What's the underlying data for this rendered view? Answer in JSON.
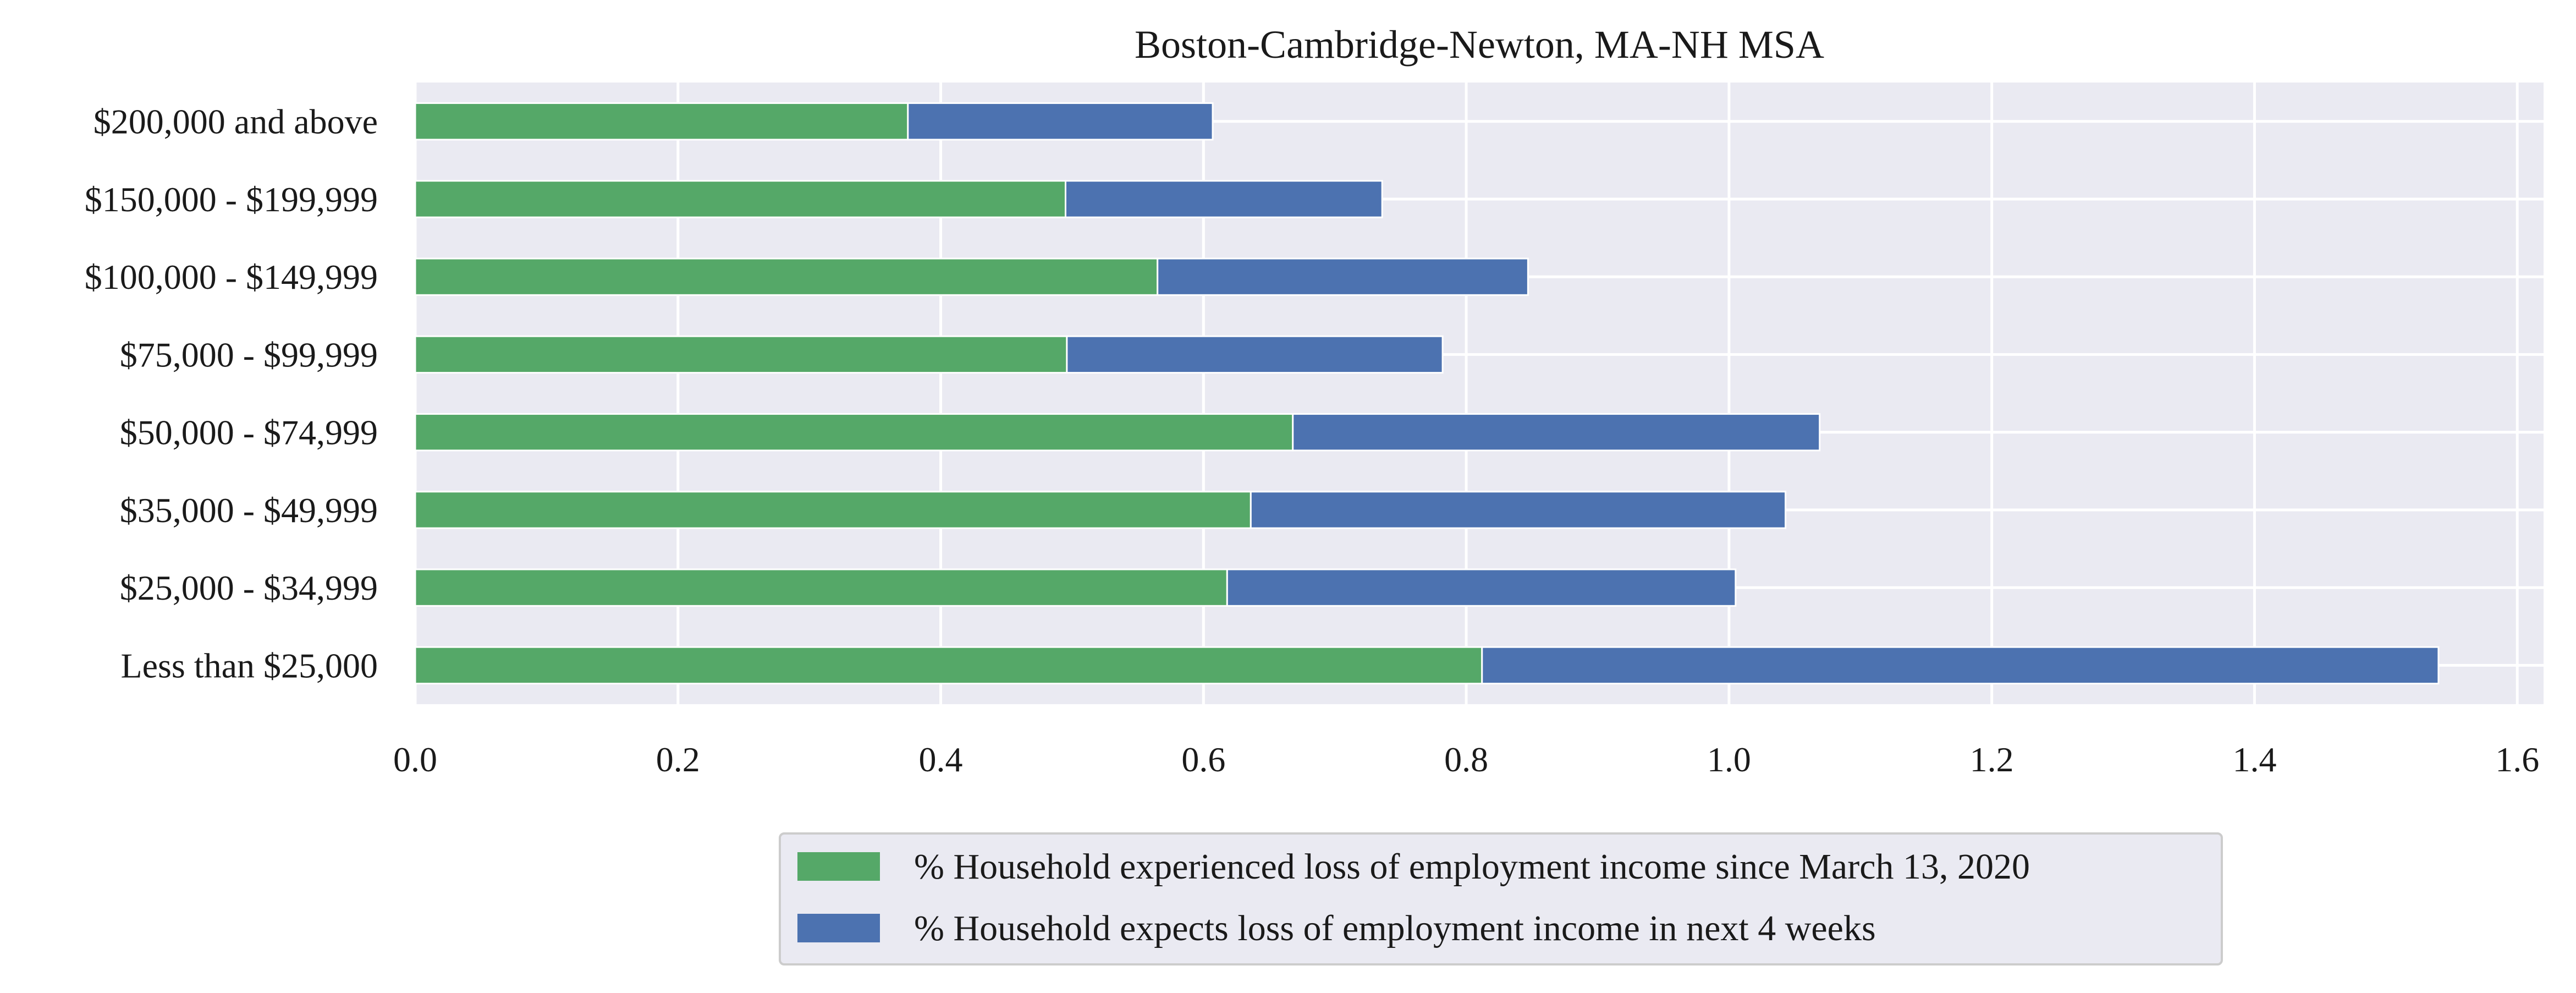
{
  "chart_data": {
    "type": "bar",
    "orientation": "horizontal",
    "stacked": true,
    "title": "Boston-Cambridge-Newton, MA-NH MSA",
    "xlabel": "",
    "ylabel": "",
    "xlim": [
      0,
      1.62
    ],
    "xticks": [
      "0.0",
      "0.2",
      "0.4",
      "0.6",
      "0.8",
      "1.0",
      "1.2",
      "1.4",
      "1.6"
    ],
    "grid": true,
    "legend_position": "bottom-center",
    "categories": [
      "$200,000 and above",
      "$150,000 - $199,999",
      "$100,000 - $149,999",
      "$75,000 - $99,999",
      "$50,000 - $74,999",
      "$35,000 - $49,999",
      "$25,000 - $34,999",
      "Less than $25,000"
    ],
    "series": [
      {
        "name": "% Household experienced loss of employment income since March 13, 2020",
        "color": "#55a868",
        "values": [
          0.375,
          0.495,
          0.565,
          0.496,
          0.668,
          0.636,
          0.618,
          0.812
        ]
      },
      {
        "name": "% Household expects loss of employment income in next 4 weeks",
        "color": "#4c72b0",
        "values": [
          0.232,
          0.241,
          0.282,
          0.286,
          0.401,
          0.407,
          0.387,
          0.728
        ]
      }
    ],
    "colors": {
      "plot_background": "#eaeaf2",
      "grid": "#ffffff",
      "legend_background": "#eaeaf2",
      "legend_border": "#cccccc"
    }
  }
}
